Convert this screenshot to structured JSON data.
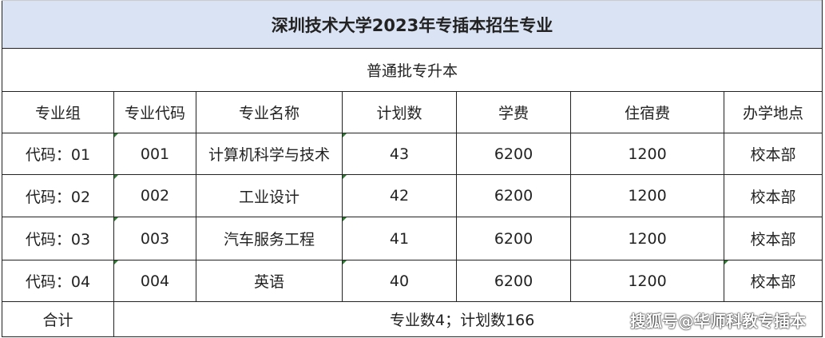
{
  "title": "深圳技术大学2023年专插本招生专业",
  "subtitle": "普通批专升本",
  "headers": [
    "专业组",
    "专业代码",
    "专业名称",
    "计划数",
    "学费",
    "住宿费",
    "办学地点"
  ],
  "rows": [
    [
      "代码：01",
      "001",
      "计算机科学与技术",
      "43",
      "6200",
      "1200",
      "校本部"
    ],
    [
      "代码：02",
      "002",
      "工业设计",
      "42",
      "6200",
      "1200",
      "校本部"
    ],
    [
      "代码：03",
      "003",
      "汽车服务工程",
      "41",
      "6200",
      "1200",
      "校本部"
    ],
    [
      "代码：04",
      "004",
      "英语",
      "40",
      "6200",
      "1200",
      "校本部"
    ]
  ],
  "total": {
    "label": "合计",
    "text": "专业数4；计划数166"
  },
  "watermark": "搜狐号@华师科教专插本",
  "colors": {
    "title_bg": "#dae3f3",
    "text_marker": "#2e7d32"
  }
}
